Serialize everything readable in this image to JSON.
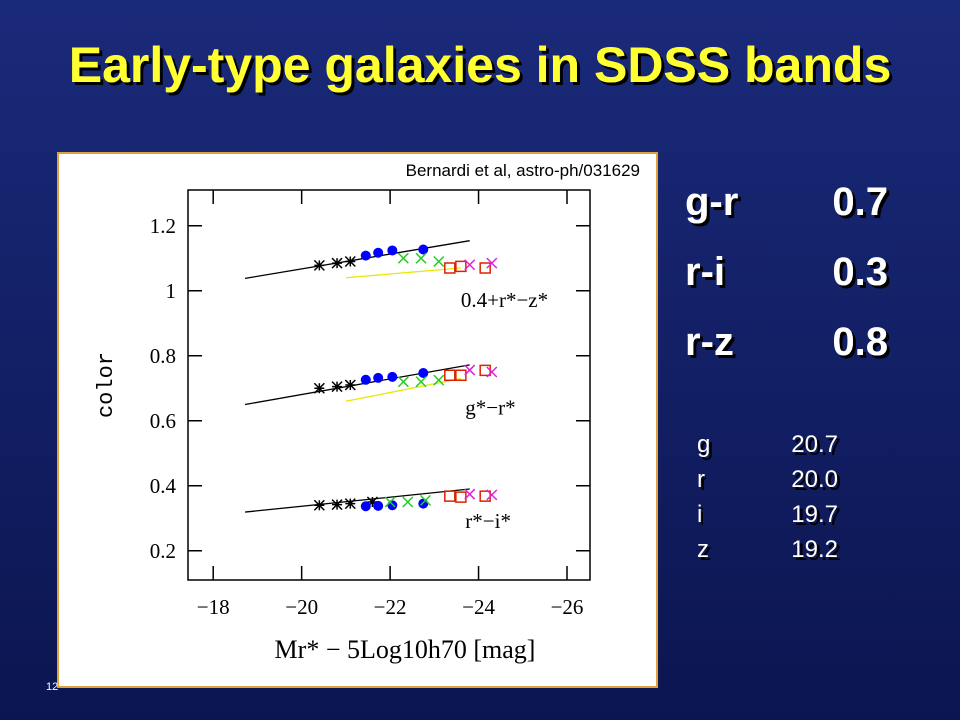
{
  "title": "Early-type galaxies in SDSS bands",
  "chart_data": {
    "type": "scatter",
    "source": "Bernardi et al, astro-ph/031629",
    "xlabel": "Mr* − 5Log10h70 [mag]",
    "ylabel": "color",
    "annotations": [
      {
        "text": "0.4+r*−z*",
        "x": -23.6,
        "y": 0.95
      },
      {
        "text": "g*−r*",
        "x": -23.7,
        "y": 0.62
      },
      {
        "text": "r*−i*",
        "x": -23.7,
        "y": 0.27
      }
    ],
    "xlim": [
      -17.43,
      -26.52
    ],
    "ylim": [
      0.11,
      1.31
    ],
    "xticks": [
      {
        "value": -18,
        "label": "−18"
      },
      {
        "value": -20,
        "label": "−20"
      },
      {
        "value": -22,
        "label": "−22"
      },
      {
        "value": -24,
        "label": "−24"
      },
      {
        "value": -26,
        "label": "−26"
      }
    ],
    "yticks": [
      0.2,
      0.4,
      0.6,
      0.8,
      1,
      1.2
    ],
    "series": [
      {
        "color": "#000000",
        "marker": "line",
        "x": [
          -18.72,
          -23.8
        ],
        "values": [
          1.038,
          1.154
        ]
      },
      {
        "color": "#000000",
        "marker": "line",
        "x": [
          -18.72,
          -23.8
        ],
        "values": [
          0.65,
          0.772
        ]
      },
      {
        "color": "#000000",
        "marker": "line",
        "x": [
          -18.72,
          -23.8
        ],
        "values": [
          0.319,
          0.39
        ]
      },
      {
        "color": "#e8e800",
        "marker": "line",
        "x": [
          -21.0,
          -23.6
        ],
        "values": [
          1.04,
          1.07
        ]
      },
      {
        "color": "#e8e800",
        "marker": "line",
        "x": [
          -21.0,
          -23.6
        ],
        "values": [
          0.66,
          0.73
        ]
      },
      {
        "color": "#000000",
        "marker": "star",
        "x": [
          -20.4,
          -20.8,
          -21.1
        ],
        "values": [
          1.078,
          1.085,
          1.09
        ]
      },
      {
        "color": "#0000ff",
        "marker": "circle",
        "x": [
          -21.45,
          -21.73,
          -22.05,
          -22.75
        ],
        "values": [
          1.108,
          1.117,
          1.124,
          1.127
        ]
      },
      {
        "color": "#22cc22",
        "marker": "cross",
        "x": [
          -22.3,
          -22.7,
          -23.1
        ],
        "values": [
          1.1,
          1.1,
          1.09
        ]
      },
      {
        "color": "#dd2200",
        "marker": "square",
        "x": [
          -23.35,
          -23.6,
          -24.15
        ],
        "values": [
          1.07,
          1.075,
          1.07
        ]
      },
      {
        "color": "#dd22dd",
        "marker": "cross",
        "x": [
          -23.8,
          -24.3
        ],
        "values": [
          1.08,
          1.085
        ]
      },
      {
        "color": "#000000",
        "marker": "star",
        "x": [
          -20.4,
          -20.8,
          -21.1
        ],
        "values": [
          0.7,
          0.705,
          0.71
        ]
      },
      {
        "color": "#0000ff",
        "marker": "circle",
        "x": [
          -21.45,
          -21.73,
          -22.05,
          -22.75
        ],
        "values": [
          0.726,
          0.732,
          0.735,
          0.747
        ]
      },
      {
        "color": "#22cc22",
        "marker": "cross",
        "x": [
          -22.3,
          -22.7,
          -23.1
        ],
        "values": [
          0.72,
          0.72,
          0.725
        ]
      },
      {
        "color": "#dd2200",
        "marker": "square",
        "x": [
          -23.35,
          -23.6,
          -24.15
        ],
        "values": [
          0.74,
          0.74,
          0.755
        ]
      },
      {
        "color": "#dd22dd",
        "marker": "cross",
        "x": [
          -23.8,
          -24.3
        ],
        "values": [
          0.756,
          0.75
        ]
      },
      {
        "color": "#000000",
        "marker": "star",
        "x": [
          -20.4,
          -20.8,
          -21.1,
          -21.6
        ],
        "values": [
          0.34,
          0.342,
          0.345,
          0.35
        ]
      },
      {
        "color": "#0000ff",
        "marker": "circle",
        "x": [
          -21.45,
          -21.73,
          -22.05,
          -22.75
        ],
        "values": [
          0.337,
          0.338,
          0.34,
          0.345
        ]
      },
      {
        "color": "#22cc22",
        "marker": "cross",
        "x": [
          -22.0,
          -22.4,
          -22.8
        ],
        "values": [
          0.35,
          0.35,
          0.355
        ]
      },
      {
        "color": "#dd2200",
        "marker": "square",
        "x": [
          -23.35,
          -23.6,
          -24.15
        ],
        "values": [
          0.368,
          0.365,
          0.368
        ]
      },
      {
        "color": "#dd22dd",
        "marker": "cross",
        "x": [
          -23.8,
          -24.3
        ],
        "values": [
          0.374,
          0.372
        ]
      }
    ]
  },
  "colors": [
    [
      "g-r",
      "0.7"
    ],
    [
      "r-i",
      "0.3"
    ],
    [
      "r-z",
      "0.8"
    ]
  ],
  "magnitudes": [
    [
      "g",
      "20.7"
    ],
    [
      "r",
      "20.0"
    ],
    [
      "i",
      "19.7"
    ],
    [
      "z",
      "19.2"
    ]
  ],
  "slide_number": "12"
}
